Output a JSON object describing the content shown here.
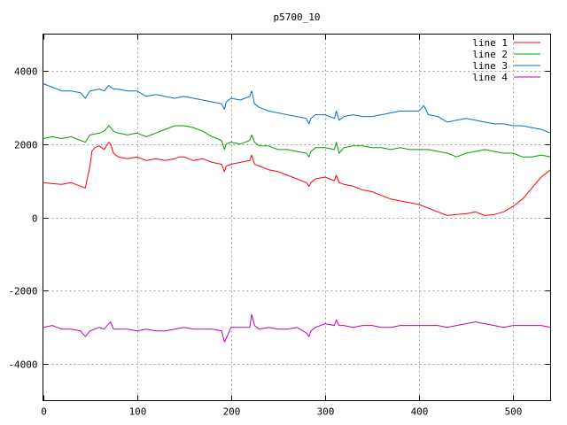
{
  "chart_data": {
    "type": "line",
    "title": "p5700_10",
    "xlabel": "",
    "ylabel": "",
    "xlim": [
      0,
      540
    ],
    "ylim": [
      -5000,
      5000
    ],
    "xticks": [
      0,
      100,
      200,
      300,
      400,
      500
    ],
    "yticks": [
      -4000,
      -2000,
      0,
      2000,
      4000
    ],
    "grid": true,
    "legend_position": "top-right",
    "series": [
      {
        "name": "line 1",
        "color": "#ff0000",
        "x": [
          0,
          10,
          20,
          30,
          40,
          45,
          50,
          52,
          55,
          60,
          65,
          70,
          72,
          75,
          80,
          90,
          100,
          110,
          120,
          130,
          140,
          145,
          150,
          160,
          170,
          180,
          190,
          193,
          195,
          200,
          210,
          220,
          222,
          225,
          230,
          240,
          250,
          260,
          270,
          280,
          283,
          285,
          290,
          300,
          310,
          312,
          315,
          320,
          330,
          340,
          350,
          360,
          370,
          380,
          390,
          400,
          410,
          420,
          430,
          440,
          450,
          460,
          465,
          470,
          480,
          490,
          500,
          510,
          520,
          530,
          540
        ],
        "y": [
          950,
          920,
          900,
          950,
          850,
          800,
          1400,
          1800,
          1900,
          1950,
          1850,
          2050,
          2000,
          1750,
          1650,
          1600,
          1650,
          1550,
          1600,
          1550,
          1600,
          1650,
          1650,
          1550,
          1600,
          1500,
          1450,
          1250,
          1400,
          1450,
          1500,
          1550,
          1700,
          1450,
          1400,
          1300,
          1250,
          1150,
          1050,
          950,
          850,
          950,
          1050,
          1100,
          1000,
          1150,
          950,
          900,
          850,
          750,
          700,
          600,
          500,
          450,
          400,
          350,
          250,
          150,
          50,
          80,
          100,
          150,
          100,
          50,
          80,
          150,
          300,
          500,
          800,
          1100,
          1300
        ]
      },
      {
        "name": "line 2",
        "color": "#00a000",
        "x": [
          0,
          10,
          20,
          30,
          40,
          45,
          50,
          60,
          65,
          70,
          72,
          75,
          80,
          90,
          100,
          110,
          120,
          130,
          140,
          150,
          160,
          170,
          180,
          190,
          193,
          195,
          200,
          210,
          220,
          222,
          225,
          230,
          240,
          250,
          260,
          270,
          280,
          283,
          285,
          290,
          300,
          310,
          312,
          315,
          320,
          330,
          340,
          350,
          360,
          370,
          380,
          390,
          400,
          410,
          420,
          430,
          440,
          450,
          460,
          470,
          480,
          490,
          500,
          510,
          520,
          530,
          540
        ],
        "y": [
          2150,
          2200,
          2150,
          2200,
          2100,
          2050,
          2250,
          2300,
          2350,
          2500,
          2450,
          2350,
          2300,
          2250,
          2300,
          2200,
          2300,
          2400,
          2500,
          2500,
          2450,
          2350,
          2200,
          2100,
          1850,
          2000,
          2050,
          2000,
          2100,
          2250,
          2050,
          1950,
          1950,
          1850,
          1850,
          1800,
          1750,
          1650,
          1800,
          1900,
          1900,
          1850,
          2050,
          1750,
          1900,
          1950,
          1950,
          1900,
          1900,
          1850,
          1900,
          1850,
          1850,
          1850,
          1800,
          1750,
          1650,
          1750,
          1800,
          1850,
          1800,
          1750,
          1750,
          1650,
          1650,
          1700,
          1650
        ]
      },
      {
        "name": "line 3",
        "color": "#0070d0",
        "x": [
          0,
          10,
          20,
          30,
          40,
          45,
          50,
          60,
          65,
          70,
          72,
          75,
          80,
          90,
          100,
          110,
          120,
          130,
          140,
          150,
          160,
          170,
          180,
          190,
          193,
          195,
          200,
          210,
          220,
          222,
          225,
          230,
          240,
          250,
          260,
          270,
          280,
          283,
          285,
          290,
          300,
          310,
          312,
          315,
          320,
          330,
          340,
          350,
          360,
          370,
          380,
          390,
          400,
          405,
          410,
          420,
          430,
          440,
          450,
          460,
          470,
          480,
          490,
          500,
          510,
          520,
          530,
          540
        ],
        "y": [
          3650,
          3550,
          3450,
          3450,
          3400,
          3250,
          3450,
          3500,
          3450,
          3600,
          3550,
          3500,
          3500,
          3450,
          3450,
          3300,
          3350,
          3300,
          3250,
          3300,
          3250,
          3200,
          3150,
          3100,
          2950,
          3150,
          3250,
          3200,
          3300,
          3450,
          3100,
          3000,
          2900,
          2850,
          2800,
          2750,
          2700,
          2550,
          2700,
          2800,
          2800,
          2700,
          2900,
          2650,
          2750,
          2800,
          2750,
          2750,
          2800,
          2850,
          2900,
          2900,
          2900,
          3050,
          2800,
          2750,
          2600,
          2650,
          2700,
          2650,
          2600,
          2550,
          2550,
          2500,
          2500,
          2450,
          2400,
          2300
        ]
      },
      {
        "name": "line 4",
        "color": "#c000c0",
        "x": [
          0,
          10,
          20,
          30,
          40,
          45,
          50,
          60,
          65,
          70,
          72,
          75,
          80,
          90,
          100,
          110,
          120,
          130,
          140,
          150,
          160,
          170,
          180,
          190,
          193,
          195,
          200,
          210,
          220,
          222,
          225,
          230,
          240,
          250,
          260,
          270,
          280,
          283,
          285,
          290,
          300,
          310,
          312,
          315,
          320,
          330,
          340,
          350,
          360,
          370,
          380,
          390,
          400,
          410,
          420,
          430,
          440,
          450,
          460,
          470,
          480,
          490,
          500,
          510,
          520,
          530,
          540
        ],
        "y": [
          -3000,
          -2950,
          -3050,
          -3050,
          -3100,
          -3250,
          -3100,
          -3000,
          -3050,
          -2900,
          -2850,
          -3050,
          -3050,
          -3050,
          -3100,
          -3050,
          -3100,
          -3100,
          -3050,
          -3000,
          -3050,
          -3050,
          -3050,
          -3100,
          -3400,
          -3300,
          -3000,
          -3000,
          -3000,
          -2650,
          -2950,
          -3050,
          -3000,
          -3050,
          -3050,
          -3000,
          -3150,
          -3250,
          -3100,
          -3000,
          -2900,
          -2950,
          -2800,
          -2950,
          -2950,
          -3000,
          -2950,
          -2950,
          -3000,
          -3000,
          -2950,
          -2950,
          -2950,
          -2950,
          -2950,
          -3000,
          -2950,
          -2900,
          -2850,
          -2900,
          -2950,
          -3000,
          -2950,
          -2950,
          -2950,
          -2950,
          -3000
        ]
      }
    ]
  }
}
